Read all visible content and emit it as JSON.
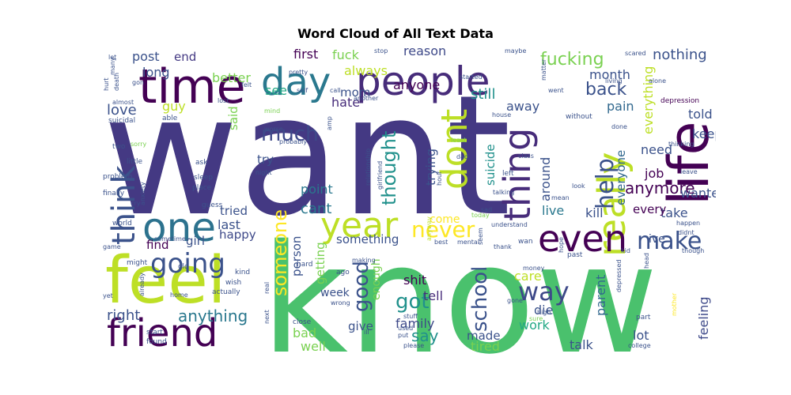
{
  "chart_data": {
    "type": "wordcloud",
    "title": "Word Cloud of All Text Data",
    "palette": "viridis",
    "words": [
      {
        "text": "want",
        "color": "#443983"
      },
      {
        "text": "know",
        "color": "#4ac16d"
      },
      {
        "text": "feel",
        "color": "#bddf26"
      },
      {
        "text": "life",
        "color": "#440154"
      },
      {
        "text": "time",
        "color": "#440154"
      },
      {
        "text": "people",
        "color": "#472c7a"
      },
      {
        "text": "day",
        "color": "#2a788e"
      },
      {
        "text": "really",
        "color": "#bddf26"
      },
      {
        "text": "dont",
        "color": "#bddf26"
      },
      {
        "text": "thing",
        "color": "#472c7a"
      },
      {
        "text": "one",
        "color": "#2c728e"
      },
      {
        "text": "friend",
        "color": "#440154"
      },
      {
        "text": "even",
        "color": "#440154"
      },
      {
        "text": "year",
        "color": "#bddf26"
      },
      {
        "text": "think",
        "color": "#3b528b"
      },
      {
        "text": "going",
        "color": "#3b528b"
      },
      {
        "text": "make",
        "color": "#3b528b"
      },
      {
        "text": "way",
        "color": "#3e4989"
      },
      {
        "text": "much",
        "color": "#3e4989"
      },
      {
        "text": "someone",
        "color": "#fde725"
      },
      {
        "text": "help",
        "color": "#3b528b"
      },
      {
        "text": "never",
        "color": "#fde725"
      },
      {
        "text": "got",
        "color": "#21918c"
      },
      {
        "text": "school",
        "color": "#3b528b"
      },
      {
        "text": "thought",
        "color": "#21918c"
      },
      {
        "text": "good",
        "color": "#3b528b"
      },
      {
        "text": "anything",
        "color": "#2a788e"
      },
      {
        "text": "fucking",
        "color": "#7ad151"
      },
      {
        "text": "anymore",
        "color": "#440154"
      },
      {
        "text": "back",
        "color": "#3b528b"
      },
      {
        "text": "say",
        "color": "#21918c"
      },
      {
        "text": "right",
        "color": "#3b528b"
      },
      {
        "text": "nothing",
        "color": "#3b528b"
      },
      {
        "text": "point",
        "color": "#2a788e"
      },
      {
        "text": "cant",
        "color": "#2a788e"
      },
      {
        "text": "love",
        "color": "#3b528b"
      },
      {
        "text": "still",
        "color": "#21918c"
      },
      {
        "text": "see",
        "color": "#22a884"
      },
      {
        "text": "everything",
        "color": "#bddf26"
      },
      {
        "text": "everyone",
        "color": "#31688e"
      },
      {
        "text": "need",
        "color": "#3b528b"
      },
      {
        "text": "take",
        "color": "#3b528b"
      },
      {
        "text": "last",
        "color": "#3b528b"
      },
      {
        "text": "shit",
        "color": "#440154"
      },
      {
        "text": "feeling",
        "color": "#3e4989"
      },
      {
        "text": "tell",
        "color": "#472c7a"
      },
      {
        "text": "family",
        "color": "#3e4989"
      },
      {
        "text": "better",
        "color": "#7ad151"
      },
      {
        "text": "fuck",
        "color": "#7ad151"
      },
      {
        "text": "post",
        "color": "#3b528b"
      },
      {
        "text": "end",
        "color": "#443983"
      },
      {
        "text": "first",
        "color": "#440154"
      },
      {
        "text": "reason",
        "color": "#3e4989"
      },
      {
        "text": "anyone",
        "color": "#440154"
      },
      {
        "text": "always",
        "color": "#bddf26"
      },
      {
        "text": "hate",
        "color": "#472c7a"
      },
      {
        "text": "mom",
        "color": "#3b528b"
      },
      {
        "text": "long",
        "color": "#3b528b"
      },
      {
        "text": "month",
        "color": "#3b528b"
      },
      {
        "text": "guy",
        "color": "#bddf26"
      },
      {
        "text": "said",
        "color": "#7ad151"
      },
      {
        "text": "away",
        "color": "#3b528b"
      },
      {
        "text": "pain",
        "color": "#31688e"
      },
      {
        "text": "told",
        "color": "#3b528b"
      },
      {
        "text": "keep",
        "color": "#3b528b"
      },
      {
        "text": "job",
        "color": "#440154"
      },
      {
        "text": "wanted",
        "color": "#3b528b"
      },
      {
        "text": "around",
        "color": "#3b528b"
      },
      {
        "text": "kill",
        "color": "#3b528b"
      },
      {
        "text": "every",
        "color": "#440154"
      },
      {
        "text": "live",
        "color": "#2a788e"
      },
      {
        "text": "trying",
        "color": "#3b528b"
      },
      {
        "text": "suicide",
        "color": "#21918c"
      },
      {
        "text": "happy",
        "color": "#3e4989"
      },
      {
        "text": "tried",
        "color": "#3b528b"
      },
      {
        "text": "girl",
        "color": "#3b528b"
      },
      {
        "text": "something",
        "color": "#3b528b"
      },
      {
        "text": "person",
        "color": "#3b528b"
      },
      {
        "text": "getting",
        "color": "#7ad151"
      },
      {
        "text": "come",
        "color": "#fde725"
      },
      {
        "text": "care",
        "color": "#bddf26"
      },
      {
        "text": "die",
        "color": "#3b528b"
      },
      {
        "text": "work",
        "color": "#22a884"
      },
      {
        "text": "parent",
        "color": "#31688e"
      },
      {
        "text": "lot",
        "color": "#3b528b"
      },
      {
        "text": "talk",
        "color": "#3b528b"
      },
      {
        "text": "tired",
        "color": "#7ad151"
      },
      {
        "text": "made",
        "color": "#3b528b"
      },
      {
        "text": "give",
        "color": "#3b528b"
      },
      {
        "text": "bad",
        "color": "#7ad151"
      },
      {
        "text": "well",
        "color": "#7ad151"
      },
      {
        "text": "week",
        "color": "#3b528b"
      },
      {
        "text": "enough",
        "color": "#7ad151"
      },
      {
        "text": "find",
        "color": "#440154"
      },
      {
        "text": "try",
        "color": "#3b528b"
      },
      {
        "text": "ive",
        "color": "#3b528b"
      },
      {
        "text": "suicidal",
        "color": "#3b528b"
      },
      {
        "text": "almost",
        "color": "#3b528b"
      },
      {
        "text": "able",
        "color": "#3b528b"
      },
      {
        "text": "depression",
        "color": "#440154"
      },
      {
        "text": "alone",
        "color": "#3b528b"
      },
      {
        "text": "living",
        "color": "#3b528b"
      },
      {
        "text": "scared",
        "color": "#3b528b"
      },
      {
        "text": "hurt",
        "color": "#3b528b"
      },
      {
        "text": "many",
        "color": "#3b528b"
      },
      {
        "text": "death",
        "color": "#3b528b"
      },
      {
        "text": "let",
        "color": "#3b528b"
      },
      {
        "text": "gon",
        "color": "#3b528b"
      },
      {
        "text": "two",
        "color": "#3b528b"
      },
      {
        "text": "sorry",
        "color": "#7ad151"
      },
      {
        "text": "little",
        "color": "#3b528b"
      },
      {
        "text": "problem",
        "color": "#3b528b"
      },
      {
        "text": "finally",
        "color": "#3b528b"
      },
      {
        "text": "anxiety",
        "color": "#3b528b"
      },
      {
        "text": "cry",
        "color": "#3b528b"
      },
      {
        "text": "world",
        "color": "#3b528b"
      },
      {
        "text": "game",
        "color": "#3b528b"
      },
      {
        "text": "sometime",
        "color": "#3b528b"
      },
      {
        "text": "might",
        "color": "#3b528b"
      },
      {
        "text": "already",
        "color": "#3b528b"
      },
      {
        "text": "old",
        "color": "#3b528b"
      },
      {
        "text": "yet",
        "color": "#3b528b"
      },
      {
        "text": "home",
        "color": "#3b528b"
      },
      {
        "text": "next",
        "color": "#3b528b"
      },
      {
        "text": "real",
        "color": "#3b528b"
      },
      {
        "text": "hard",
        "color": "#3b528b"
      },
      {
        "text": "ago",
        "color": "#3b528b"
      },
      {
        "text": "making",
        "color": "#3b528b"
      },
      {
        "text": "close",
        "color": "#3b528b"
      },
      {
        "text": "start",
        "color": "#3b528b"
      },
      {
        "text": "found",
        "color": "#3b528b"
      },
      {
        "text": "used",
        "color": "#3b528b"
      },
      {
        "text": "put",
        "color": "#3b528b"
      },
      {
        "text": "please",
        "color": "#3b528b"
      },
      {
        "text": "ill",
        "color": "#3b528b"
      },
      {
        "text": "stuff",
        "color": "#3b528b"
      },
      {
        "text": "best",
        "color": "#3b528b"
      },
      {
        "text": "mental",
        "color": "#3b528b"
      },
      {
        "text": "anyway",
        "color": "#bddf26"
      },
      {
        "text": "wrong",
        "color": "#3b528b"
      },
      {
        "text": "actually",
        "color": "#3b528b"
      },
      {
        "text": "wish",
        "color": "#3b528b"
      },
      {
        "text": "kind",
        "color": "#3b528b"
      },
      {
        "text": "gone",
        "color": "#3b528b"
      },
      {
        "text": "high",
        "color": "#3b528b"
      },
      {
        "text": "sure",
        "color": "#7ad151"
      },
      {
        "text": "money",
        "color": "#3b528b"
      },
      {
        "text": "past",
        "color": "#3b528b"
      },
      {
        "text": "kid",
        "color": "#3b528b"
      },
      {
        "text": "depressed",
        "color": "#3b528b"
      },
      {
        "text": "head",
        "color": "#3b528b"
      },
      {
        "text": "mother",
        "color": "#fde725"
      },
      {
        "text": "part",
        "color": "#3b528b"
      },
      {
        "text": "college",
        "color": "#3b528b"
      },
      {
        "text": "though",
        "color": "#3b528b"
      },
      {
        "text": "happen",
        "color": "#3b528b"
      },
      {
        "text": "didnt",
        "color": "#3b528b"
      },
      {
        "text": "leave",
        "color": "#3b528b"
      },
      {
        "text": "thinking",
        "color": "#3b528b"
      },
      {
        "text": "done",
        "color": "#3b528b"
      },
      {
        "text": "look",
        "color": "#3b528b"
      },
      {
        "text": "mean",
        "color": "#3b528b"
      },
      {
        "text": "hour",
        "color": "#3b528b"
      },
      {
        "text": "wan",
        "color": "#3b528b"
      },
      {
        "text": "thank",
        "color": "#3b528b"
      },
      {
        "text": "seem",
        "color": "#3b528b"
      },
      {
        "text": "hope",
        "color": "#3b528b"
      },
      {
        "text": "today",
        "color": "#7ad151"
      },
      {
        "text": "understand",
        "color": "#3b528b"
      },
      {
        "text": "sad",
        "color": "#3b528b"
      },
      {
        "text": "left",
        "color": "#3b528b"
      },
      {
        "text": "talking",
        "color": "#3b528b"
      },
      {
        "text": "class",
        "color": "#3b528b"
      },
      {
        "text": "dad",
        "color": "#3b528b"
      },
      {
        "text": "least",
        "color": "#7ad151"
      },
      {
        "text": "relationship",
        "color": "#3b528b"
      },
      {
        "text": "girlfriend",
        "color": "#3b528b"
      },
      {
        "text": "house",
        "color": "#3b528b"
      },
      {
        "text": "without",
        "color": "#3b528b"
      },
      {
        "text": "call",
        "color": "#3b528b"
      },
      {
        "text": "went",
        "color": "#3b528b"
      },
      {
        "text": "another",
        "color": "#3b528b"
      },
      {
        "text": "lost",
        "color": "#3b528b"
      },
      {
        "text": "self",
        "color": "#3b528b"
      },
      {
        "text": "felt",
        "color": "#3b528b"
      },
      {
        "text": "amp",
        "color": "#3b528b"
      },
      {
        "text": "pretty",
        "color": "#3b528b"
      },
      {
        "text": "probably",
        "color": "#3b528b"
      },
      {
        "text": "mind",
        "color": "#7ad151"
      },
      {
        "text": "worse",
        "color": "#3b528b"
      },
      {
        "text": "night",
        "color": "#3b528b"
      },
      {
        "text": "ask",
        "color": "#3b528b"
      },
      {
        "text": "sleep",
        "color": "#3b528b"
      },
      {
        "text": "place",
        "color": "#3b528b"
      },
      {
        "text": "guess",
        "color": "#3b528b"
      },
      {
        "text": "stop",
        "color": "#3b528b"
      },
      {
        "text": "started",
        "color": "#3b528b"
      },
      {
        "text": "maybe",
        "color": "#3b528b"
      },
      {
        "text": "matter",
        "color": "#3b528b"
      }
    ]
  }
}
